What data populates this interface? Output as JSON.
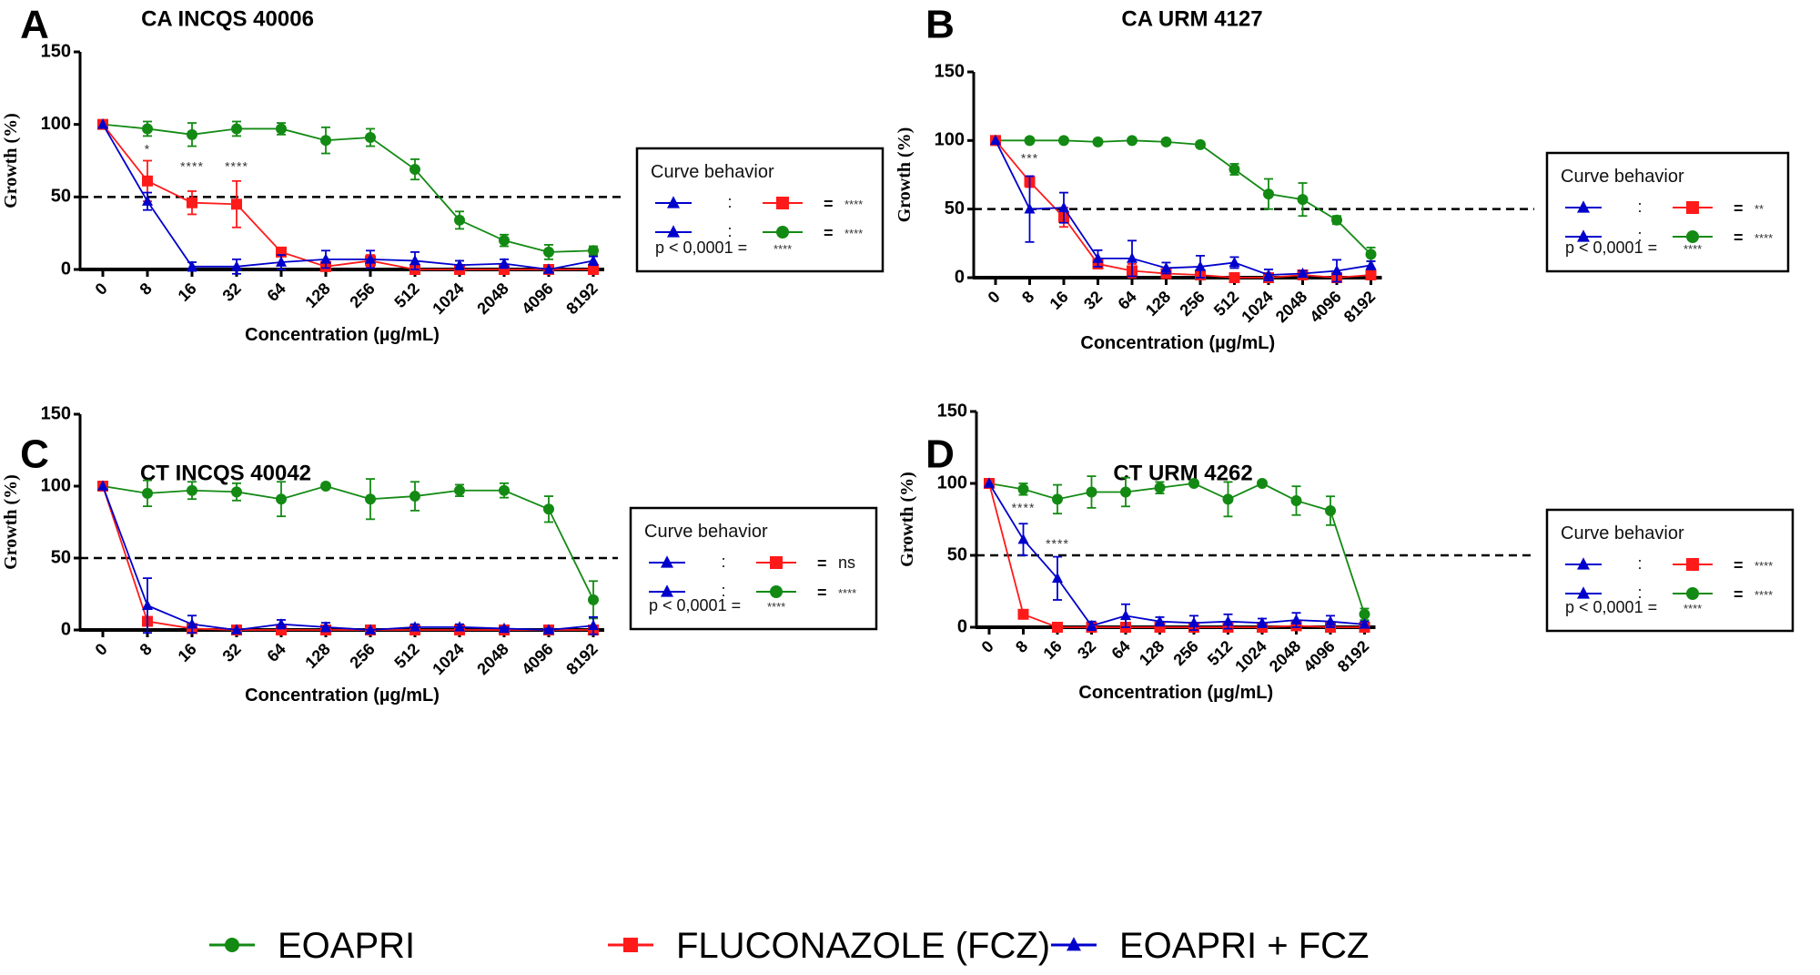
{
  "colors": {
    "EOAPRI": "#138a13",
    "FCZ": "#ff1a1a",
    "COMBO": "#0000cc",
    "threshold": "#000000"
  },
  "bottom_legend": [
    {
      "key": "EOAPRI",
      "label": "EOAPRI",
      "marker": "circle"
    },
    {
      "key": "FCZ",
      "label": "FLUCONAZOLE (FCZ)",
      "marker": "square"
    },
    {
      "key": "COMBO",
      "label": "EOAPRI + FCZ",
      "marker": "triangle"
    }
  ],
  "chart_data": [
    {
      "type": "line",
      "panel": "A",
      "title": "CA INCQS 40006",
      "xlabel": "Concentration (µg/mL)",
      "ylabel": "Growth (%)",
      "categories": [
        "0",
        "8",
        "16",
        "32",
        "64",
        "128",
        "256",
        "512",
        "1024",
        "2048",
        "4096",
        "8192"
      ],
      "ylim": [
        0,
        150
      ],
      "yticks": [
        0,
        50,
        100,
        150
      ],
      "threshold": 50,
      "series": [
        {
          "key": "EOAPRI",
          "name": "EOAPRI",
          "values": [
            100,
            97,
            93,
            97,
            97,
            89,
            91,
            69,
            34,
            20,
            12,
            13
          ],
          "errors": [
            0,
            5,
            8,
            5,
            4,
            9,
            6,
            7,
            6,
            4,
            5,
            3
          ]
        },
        {
          "key": "FCZ",
          "name": "FLUCONAZOLE (FCZ)",
          "values": [
            100,
            61,
            46,
            45,
            12,
            2,
            6,
            0,
            0,
            0,
            0,
            0
          ],
          "errors": [
            0,
            14,
            8,
            16,
            3,
            3,
            4,
            0,
            0,
            0,
            0,
            0
          ]
        },
        {
          "key": "COMBO",
          "name": "EOAPRI + FCZ",
          "values": [
            100,
            47,
            2,
            2,
            5,
            7,
            7,
            6,
            3,
            4,
            0,
            6
          ],
          "errors": [
            0,
            6,
            3,
            5,
            5,
            6,
            6,
            6,
            3,
            3,
            0,
            3
          ]
        }
      ],
      "annotations": [
        {
          "category": "8",
          "y": 80,
          "text": "*"
        },
        {
          "category": "16",
          "y": 68,
          "text": "****"
        },
        {
          "category": "32",
          "y": 68,
          "text": "****"
        }
      ],
      "legend": {
        "title": "Curve behavior",
        "rows": [
          {
            "a": "COMBO",
            "b": "FCZ",
            "result": "****"
          },
          {
            "a": "COMBO",
            "b": "EOAPRI",
            "result": "****"
          }
        ],
        "note_label": "p < 0,0001 =",
        "note_value": "****",
        "placement": "right"
      }
    },
    {
      "type": "line",
      "panel": "B",
      "title": "CA URM 4127",
      "xlabel": "Concentration (µg/mL)",
      "ylabel": "Growth (%)",
      "categories": [
        "0",
        "8",
        "16",
        "32",
        "64",
        "128",
        "256",
        "512",
        "1024",
        "2048",
        "4096",
        "8192"
      ],
      "ylim": [
        0,
        150
      ],
      "yticks": [
        0,
        50,
        100,
        150
      ],
      "threshold": 50,
      "series": [
        {
          "key": "EOAPRI",
          "name": "EOAPRI",
          "values": [
            100,
            100,
            100,
            99,
            100,
            99,
            97,
            79,
            61,
            57,
            42,
            17
          ],
          "errors": [
            0,
            0,
            0,
            0,
            0,
            0,
            2,
            4,
            11,
            12,
            3,
            5
          ]
        },
        {
          "key": "FCZ",
          "name": "FLUCONAZOLE (FCZ)",
          "values": [
            100,
            70,
            44,
            10,
            5,
            3,
            2,
            0,
            0,
            2,
            0,
            2
          ],
          "errors": [
            0,
            4,
            7,
            2,
            5,
            2,
            2,
            0,
            0,
            2,
            0,
            2
          ]
        },
        {
          "key": "COMBO",
          "name": "EOAPRI + FCZ",
          "values": [
            100,
            50,
            51,
            14,
            14,
            7,
            8,
            11,
            2,
            3,
            5,
            9
          ],
          "errors": [
            0,
            24,
            11,
            6,
            13,
            4,
            8,
            4,
            4,
            2,
            8,
            3
          ]
        }
      ],
      "annotations": [
        {
          "category": "8",
          "y": 84,
          "text": "***"
        }
      ],
      "legend": {
        "title": "Curve behavior",
        "rows": [
          {
            "a": "COMBO",
            "b": "FCZ",
            "result": "**"
          },
          {
            "a": "COMBO",
            "b": "EOAPRI",
            "result": "****"
          }
        ],
        "note_label": "p < 0,0001 =",
        "note_value": "****",
        "placement": "right"
      }
    },
    {
      "type": "line",
      "panel": "C",
      "title": "CT INCQS 40042",
      "xlabel": "Concentration (µg/mL)",
      "ylabel": "Growth (%)",
      "categories": [
        "0",
        "8",
        "16",
        "32",
        "64",
        "128",
        "256",
        "512",
        "1024",
        "2048",
        "4096",
        "8192"
      ],
      "ylim": [
        0,
        150
      ],
      "yticks": [
        0,
        50,
        100,
        150
      ],
      "threshold": 50,
      "series": [
        {
          "key": "EOAPRI",
          "name": "EOAPRI",
          "values": [
            100,
            95,
            97,
            96,
            91,
            100,
            91,
            93,
            97,
            97,
            84,
            21
          ],
          "errors": [
            0,
            9,
            6,
            6,
            12,
            0,
            14,
            10,
            4,
            5,
            9,
            13
          ]
        },
        {
          "key": "FCZ",
          "name": "FLUCONAZOLE (FCZ)",
          "values": [
            100,
            6,
            1,
            0,
            0,
            0,
            0,
            0,
            0,
            0,
            0,
            0
          ],
          "errors": [
            0,
            3,
            1,
            0,
            0,
            0,
            0,
            0,
            0,
            0,
            0,
            0
          ]
        },
        {
          "key": "COMBO",
          "name": "EOAPRI + FCZ",
          "values": [
            100,
            17,
            4,
            0,
            4,
            2,
            0,
            2,
            2,
            1,
            0,
            3
          ],
          "errors": [
            0,
            19,
            6,
            0,
            3,
            3,
            0,
            2,
            2,
            1,
            1,
            6
          ]
        }
      ],
      "annotations": [],
      "legend": {
        "title": "Curve behavior",
        "rows": [
          {
            "a": "COMBO",
            "b": "FCZ",
            "result": "ns"
          },
          {
            "a": "COMBO",
            "b": "EOAPRI",
            "result": "****"
          }
        ],
        "note_label": "p < 0,0001 =",
        "note_value": "****",
        "placement": "right"
      }
    },
    {
      "type": "line",
      "panel": "D",
      "title": "CT URM 4262",
      "xlabel": "Concentration (µg/mL)",
      "ylabel": "Growth (%)",
      "categories": [
        "0",
        "8",
        "16",
        "32",
        "64",
        "128",
        "256",
        "512",
        "1024",
        "2048",
        "4096",
        "8192"
      ],
      "ylim": [
        0,
        150
      ],
      "yticks": [
        0,
        50,
        100,
        150
      ],
      "threshold": 50,
      "series": [
        {
          "key": "EOAPRI",
          "name": "EOAPRI",
          "values": [
            100,
            96,
            89,
            94,
            94,
            97,
            100,
            89,
            100,
            88,
            81,
            9
          ],
          "errors": [
            0,
            4,
            10,
            11,
            10,
            4,
            0,
            12,
            0,
            10,
            10,
            4
          ]
        },
        {
          "key": "FCZ",
          "name": "FLUCONAZOLE (FCZ)",
          "values": [
            100,
            9,
            0,
            0,
            0,
            0,
            0,
            0,
            0,
            1,
            0,
            0
          ],
          "errors": [
            0,
            3,
            0,
            0,
            0,
            0,
            0,
            0,
            0,
            1,
            0,
            0
          ]
        },
        {
          "key": "COMBO",
          "name": "EOAPRI + FCZ",
          "values": [
            100,
            61,
            34,
            1,
            8,
            4,
            3,
            4,
            3,
            5,
            4,
            2
          ],
          "errors": [
            0,
            11,
            15,
            3,
            8,
            3,
            5,
            5,
            3,
            5,
            4,
            2
          ]
        }
      ],
      "annotations": [
        {
          "category": "8",
          "y": 80,
          "text": "****"
        },
        {
          "category": "16",
          "y": 55,
          "text": "****"
        }
      ],
      "legend": {
        "title": "Curve behavior",
        "rows": [
          {
            "a": "COMBO",
            "b": "FCZ",
            "result": "****"
          },
          {
            "a": "COMBO",
            "b": "EOAPRI",
            "result": "****"
          }
        ],
        "note_label": "p < 0,0001 =",
        "note_value": "****",
        "placement": "right"
      }
    }
  ]
}
